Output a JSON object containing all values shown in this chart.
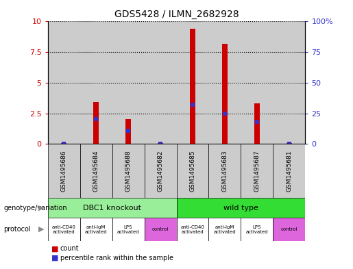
{
  "title": "GDS5428 / ILMN_2682928",
  "samples": [
    "GSM1495686",
    "GSM1495684",
    "GSM1495688",
    "GSM1495682",
    "GSM1495685",
    "GSM1495683",
    "GSM1495687",
    "GSM1495681"
  ],
  "count_values": [
    0.05,
    3.4,
    2.0,
    0.05,
    9.4,
    8.2,
    3.3,
    0.05
  ],
  "percentile_values": [
    0.02,
    2.0,
    1.1,
    0.02,
    3.2,
    2.5,
    1.8,
    0.02
  ],
  "ylim_left": [
    0,
    10
  ],
  "ylim_right": [
    0,
    100
  ],
  "yticks_left": [
    0,
    2.5,
    5,
    7.5,
    10
  ],
  "yticks_right": [
    0,
    25,
    50,
    75,
    100
  ],
  "ytick_labels_left": [
    "0",
    "2.5",
    "5",
    "7.5",
    "10"
  ],
  "ytick_labels_right": [
    "0",
    "25",
    "50",
    "75",
    "100%"
  ],
  "bar_color": "#cc0000",
  "percentile_color": "#3333cc",
  "genotype_groups": [
    {
      "label": "DBC1 knockout",
      "start": 0,
      "end": 4,
      "color": "#99ee99"
    },
    {
      "label": "wild type",
      "start": 4,
      "end": 8,
      "color": "#33dd33"
    }
  ],
  "protocol_labels": [
    "anti-CD40\nactivated",
    "anti-IgM\nactivated",
    "LPS\nactivated",
    "control",
    "anti-CD40\nactivated",
    "anti-IgM\nactivated",
    "LPS\nactivated",
    "control"
  ],
  "protocol_colors": [
    "#ffffff",
    "#ffffff",
    "#ffffff",
    "#dd66dd",
    "#ffffff",
    "#ffffff",
    "#ffffff",
    "#dd66dd"
  ],
  "bar_width": 0.18,
  "bg_color": "#cccccc",
  "white": "#ffffff",
  "left_ylabel_color": "#cc0000",
  "right_ylabel_color": "#3333cc"
}
